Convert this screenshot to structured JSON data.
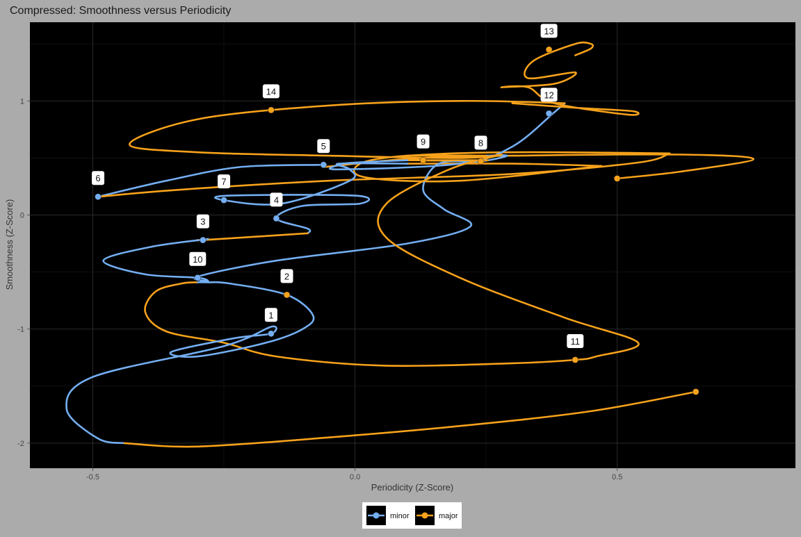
{
  "chart_data": {
    "type": "line",
    "title": "Compressed: Smoothness versus Periodicity",
    "xlabel": "Periodicity (Z-Score)",
    "ylabel": "Smoothness (Z-Score)",
    "xlim": [
      -0.62,
      0.84
    ],
    "ylim": [
      -2.22,
      1.69
    ],
    "x_ticks": [
      -0.5,
      0.0,
      0.5
    ],
    "x_tick_labels": [
      "-0.5",
      "0.0",
      "0.5"
    ],
    "y_ticks": [
      -2,
      -1,
      0,
      1
    ],
    "y_tick_labels": [
      "-2",
      "-1",
      "0",
      "1"
    ],
    "grid": true,
    "legend_position": "bottom",
    "colors": {
      "minor": "#74aef2",
      "major": "#f7a21b",
      "panel": "#000000",
      "background": "#ababab"
    },
    "legend": [
      {
        "key": "minor",
        "label": "minor",
        "color": "#74aef2"
      },
      {
        "key": "major",
        "label": "major",
        "color": "#f7a21b"
      }
    ],
    "points": [
      {
        "label": "1",
        "x": -0.16,
        "y": -1.04,
        "mode": "minor"
      },
      {
        "label": "2",
        "x": -0.13,
        "y": -0.7,
        "mode": "major"
      },
      {
        "label": "3",
        "x": -0.29,
        "y": -0.22,
        "mode": "minor"
      },
      {
        "label": "4",
        "x": -0.15,
        "y": -0.03,
        "mode": "minor"
      },
      {
        "label": "5",
        "x": -0.06,
        "y": 0.44,
        "mode": "minor"
      },
      {
        "label": "6",
        "x": -0.49,
        "y": 0.16,
        "mode": "minor"
      },
      {
        "label": "7",
        "x": -0.25,
        "y": 0.13,
        "mode": "minor"
      },
      {
        "label": "8",
        "x": 0.24,
        "y": 0.47,
        "mode": "major"
      },
      {
        "label": "9",
        "x": 0.13,
        "y": 0.48,
        "mode": "major"
      },
      {
        "label": "10",
        "x": -0.3,
        "y": -0.55,
        "mode": "minor"
      },
      {
        "label": "11",
        "x": 0.42,
        "y": -1.27,
        "mode": "major"
      },
      {
        "label": "12",
        "x": 0.37,
        "y": 0.89,
        "mode": "minor"
      },
      {
        "label": "13",
        "x": 0.37,
        "y": 1.45,
        "mode": "major"
      },
      {
        "label": "14",
        "x": -0.16,
        "y": 0.92,
        "mode": "major"
      }
    ],
    "end_point": {
      "x": 0.65,
      "y": -1.55,
      "mode": "major"
    },
    "start_point": {
      "x": 0.5,
      "y": 0.32,
      "mode": "major"
    },
    "path_segments": [
      {
        "mode": "major",
        "pts": [
          [
            0.5,
            0.32
          ],
          [
            0.62,
            0.38
          ],
          [
            0.76,
            0.49
          ],
          [
            0.62,
            0.53
          ],
          [
            0.3,
            0.52
          ],
          [
            0.12,
            0.5
          ],
          [
            -0.06,
            0.42
          ]
        ]
      },
      {
        "mode": "minor",
        "pts": [
          [
            -0.06,
            0.44
          ],
          [
            -0.22,
            0.42
          ],
          [
            -0.36,
            0.3
          ],
          [
            -0.49,
            0.16
          ]
        ]
      },
      {
        "mode": "major",
        "pts": [
          [
            -0.49,
            0.16
          ],
          [
            -0.34,
            0.22
          ],
          [
            -0.05,
            0.3
          ],
          [
            0.3,
            0.36
          ],
          [
            0.54,
            0.46
          ],
          [
            0.6,
            0.54
          ]
        ]
      },
      {
        "mode": "major",
        "pts": [
          [
            0.6,
            0.54
          ],
          [
            0.3,
            0.55
          ],
          [
            0.1,
            0.52
          ],
          [
            0.01,
            0.45
          ],
          [
            0.02,
            0.33
          ],
          [
            0.2,
            0.3
          ],
          [
            0.47,
            0.43
          ]
        ]
      },
      {
        "mode": "major",
        "pts": [
          [
            0.47,
            0.43
          ],
          [
            0.3,
            0.45
          ],
          [
            0.1,
            0.45
          ]
        ]
      },
      {
        "mode": "minor",
        "pts": [
          [
            0.1,
            0.45
          ],
          [
            -0.03,
            0.45
          ],
          [
            -0.01,
            0.4
          ],
          [
            -0.01,
            0.3
          ],
          [
            -0.14,
            0.1
          ],
          [
            -0.25,
            0.13
          ],
          [
            -0.24,
            0.17
          ],
          [
            0.0,
            0.17
          ],
          [
            0.01,
            0.1
          ],
          [
            -0.1,
            0.08
          ],
          [
            -0.15,
            -0.03
          ],
          [
            -0.09,
            -0.12
          ],
          [
            -0.09,
            -0.16
          ]
        ]
      },
      {
        "mode": "major",
        "pts": [
          [
            -0.09,
            -0.16
          ],
          [
            -0.29,
            -0.22
          ],
          [
            -0.28,
            -0.21
          ]
        ]
      },
      {
        "mode": "minor",
        "pts": [
          [
            -0.28,
            -0.21
          ],
          [
            -0.39,
            -0.28
          ],
          [
            -0.48,
            -0.4
          ],
          [
            -0.4,
            -0.52
          ],
          [
            -0.3,
            -0.55
          ],
          [
            -0.28,
            -0.58
          ],
          [
            -0.3,
            -0.54
          ],
          [
            -0.15,
            -0.4
          ],
          [
            0.1,
            -0.25
          ],
          [
            0.22,
            -0.1
          ],
          [
            0.17,
            0.05
          ],
          [
            0.13,
            0.22
          ],
          [
            0.16,
            0.45
          ],
          [
            0.24,
            0.47
          ],
          [
            0.29,
            0.52
          ],
          [
            0.25,
            0.52
          ]
        ]
      },
      {
        "mode": "major",
        "pts": [
          [
            0.25,
            0.52
          ],
          [
            0.1,
            0.52
          ],
          [
            0.13,
            0.48
          ],
          [
            0.2,
            0.48
          ],
          [
            0.25,
            0.48
          ],
          [
            0.1,
            0.48
          ]
        ]
      },
      {
        "mode": "minor",
        "pts": [
          [
            0.1,
            0.48
          ],
          [
            0.0,
            0.46
          ],
          [
            -0.03,
            0.44
          ],
          [
            -0.03,
            0.4
          ],
          [
            0.2,
            0.45
          ],
          [
            0.3,
            0.6
          ],
          [
            0.38,
            0.9
          ],
          [
            0.4,
            0.98
          ]
        ]
      },
      {
        "mode": "major",
        "pts": [
          [
            0.4,
            0.98
          ],
          [
            0.2,
            1.0
          ],
          [
            -0.05,
            0.96
          ],
          [
            -0.3,
            0.84
          ],
          [
            -0.43,
            0.62
          ],
          [
            -0.3,
            0.55
          ],
          [
            -0.05,
            0.52
          ],
          [
            0.2,
            0.5
          ],
          [
            0.28,
            0.53
          ]
        ]
      },
      {
        "mode": "major",
        "pts": [
          [
            0.28,
            0.53
          ],
          [
            0.18,
            0.4
          ],
          [
            0.06,
            0.1
          ],
          [
            0.06,
            -0.2
          ],
          [
            0.2,
            -0.55
          ],
          [
            0.4,
            -0.9
          ],
          [
            0.54,
            -1.12
          ],
          [
            0.46,
            -1.24
          ],
          [
            0.42,
            -1.27
          ],
          [
            0.3,
            -1.3
          ],
          [
            0.05,
            -1.32
          ],
          [
            -0.15,
            -1.24
          ],
          [
            -0.25,
            -1.12
          ],
          [
            -0.36,
            -1.02
          ],
          [
            -0.4,
            -0.85
          ],
          [
            -0.38,
            -0.67
          ],
          [
            -0.33,
            -0.6
          ],
          [
            -0.3,
            -0.59
          ]
        ]
      },
      {
        "mode": "minor",
        "pts": [
          [
            -0.3,
            -0.59
          ],
          [
            -0.28,
            -0.59
          ],
          [
            -0.24,
            -0.6
          ],
          [
            -0.13,
            -0.7
          ],
          [
            -0.08,
            -0.88
          ],
          [
            -0.1,
            -1.0
          ],
          [
            -0.17,
            -1.12
          ],
          [
            -0.3,
            -1.24
          ],
          [
            -0.35,
            -1.2
          ],
          [
            -0.23,
            -1.08
          ],
          [
            -0.16,
            -1.04
          ],
          [
            -0.16,
            -0.98
          ],
          [
            -0.25,
            -1.15
          ],
          [
            -0.5,
            -1.42
          ],
          [
            -0.55,
            -1.7
          ],
          [
            -0.49,
            -1.96
          ],
          [
            -0.44,
            -2.0
          ]
        ]
      },
      {
        "mode": "major",
        "pts": [
          [
            -0.44,
            -2.0
          ],
          [
            -0.3,
            -2.03
          ],
          [
            -0.05,
            -1.95
          ],
          [
            0.2,
            -1.85
          ],
          [
            0.45,
            -1.72
          ],
          [
            0.65,
            -1.55
          ]
        ]
      },
      {
        "mode": "major",
        "pts": [
          [
            0.3,
            0.98
          ],
          [
            0.42,
            0.94
          ],
          [
            0.53,
            0.91
          ],
          [
            0.52,
            0.88
          ],
          [
            0.38,
            0.98
          ],
          [
            0.33,
            1.12
          ],
          [
            0.28,
            1.12
          ],
          [
            0.38,
            1.15
          ],
          [
            0.42,
            1.25
          ],
          [
            0.33,
            1.2
          ],
          [
            0.34,
            1.35
          ],
          [
            0.42,
            1.5
          ],
          [
            0.45,
            1.5
          ],
          [
            0.45,
            1.46
          ],
          [
            0.42,
            1.4
          ]
        ]
      }
    ]
  }
}
